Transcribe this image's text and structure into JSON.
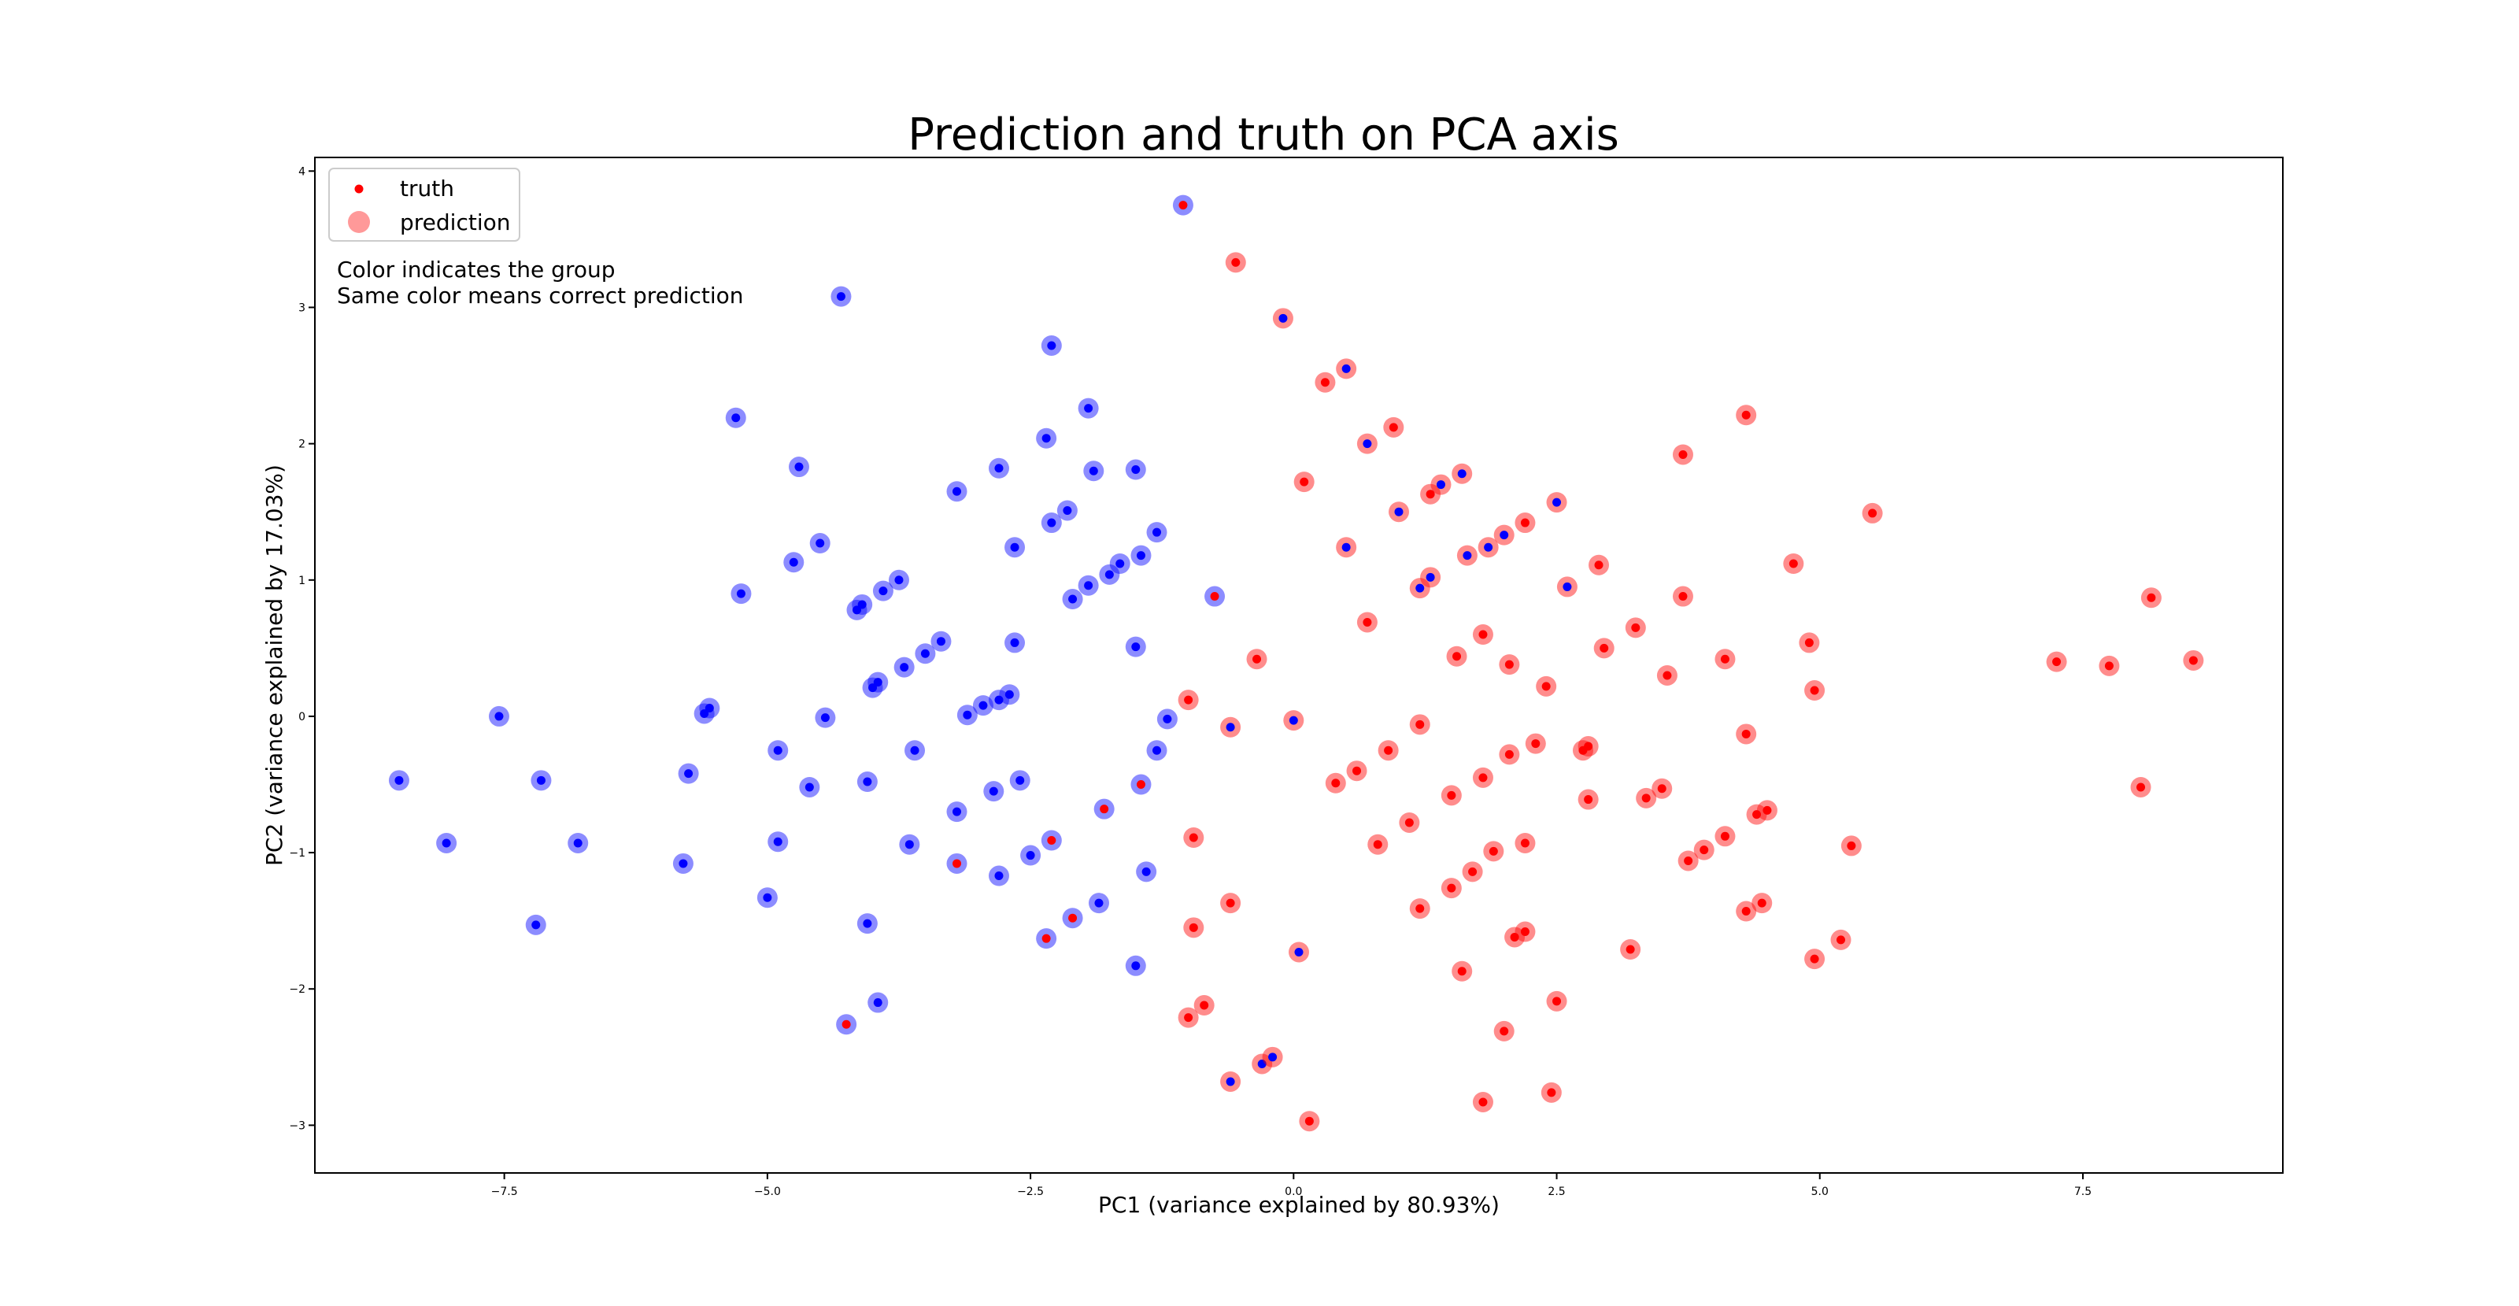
{
  "chart_data": {
    "type": "scatter",
    "title": "Prediction and truth on PCA axis",
    "xlabel": "PC1 (variance explained by 80.93%)",
    "ylabel": "PC2 (variance explained by 17.03%)",
    "xlim": [
      -9.3,
      9.4
    ],
    "ylim": [
      -3.35,
      4.1
    ],
    "xticks": [
      -7.5,
      -5.0,
      -2.5,
      0.0,
      2.5,
      5.0,
      7.5
    ],
    "xtick_labels": [
      "−7.5",
      "−5.0",
      "−2.5",
      "0.0",
      "2.5",
      "5.0",
      "7.5"
    ],
    "yticks": [
      -3,
      -2,
      -1,
      0,
      1,
      2,
      3,
      4
    ],
    "ytick_labels": [
      "−3",
      "−2",
      "−1",
      "0",
      "1",
      "2",
      "3",
      "4"
    ],
    "grid": false,
    "legend": {
      "position": "top-left",
      "entries": [
        {
          "label": "truth",
          "marker": "small dot"
        },
        {
          "label": "prediction",
          "marker": "large translucent circle"
        }
      ]
    },
    "annotation_lines": [
      "Color indicates the group",
      "Same color means correct prediction"
    ],
    "colors": {
      "group_blue": "#0000ff",
      "group_red": "#ff0000"
    },
    "points_columns": [
      "pc1",
      "pc2",
      "truth_group",
      "predicted_group"
    ],
    "points": [
      [
        -8.5,
        -0.47,
        "blue",
        "blue"
      ],
      [
        -8.05,
        -0.93,
        "blue",
        "blue"
      ],
      [
        -7.55,
        0.0,
        "blue",
        "blue"
      ],
      [
        -7.2,
        -1.53,
        "blue",
        "blue"
      ],
      [
        -7.15,
        -0.47,
        "blue",
        "blue"
      ],
      [
        -6.8,
        -0.93,
        "blue",
        "blue"
      ],
      [
        -5.8,
        -1.08,
        "blue",
        "blue"
      ],
      [
        -5.75,
        -0.42,
        "blue",
        "blue"
      ],
      [
        -5.6,
        0.02,
        "blue",
        "blue"
      ],
      [
        -5.55,
        0.06,
        "blue",
        "blue"
      ],
      [
        -5.3,
        2.19,
        "blue",
        "blue"
      ],
      [
        -5.25,
        0.9,
        "blue",
        "blue"
      ],
      [
        -5.0,
        -1.33,
        "blue",
        "blue"
      ],
      [
        -4.9,
        -0.25,
        "blue",
        "blue"
      ],
      [
        -4.9,
        -0.92,
        "blue",
        "blue"
      ],
      [
        -4.75,
        1.13,
        "blue",
        "blue"
      ],
      [
        -4.7,
        1.83,
        "blue",
        "blue"
      ],
      [
        -4.6,
        -0.52,
        "blue",
        "blue"
      ],
      [
        -4.5,
        1.27,
        "blue",
        "blue"
      ],
      [
        -4.45,
        -0.01,
        "blue",
        "blue"
      ],
      [
        -4.3,
        3.08,
        "blue",
        "blue"
      ],
      [
        -4.25,
        -2.26,
        "red",
        "blue"
      ],
      [
        -4.15,
        0.78,
        "blue",
        "blue"
      ],
      [
        -4.1,
        0.82,
        "blue",
        "blue"
      ],
      [
        -4.05,
        -1.52,
        "blue",
        "blue"
      ],
      [
        -4.05,
        -0.48,
        "blue",
        "blue"
      ],
      [
        -4.0,
        0.21,
        "blue",
        "blue"
      ],
      [
        -3.95,
        -2.1,
        "blue",
        "blue"
      ],
      [
        -3.95,
        0.25,
        "blue",
        "blue"
      ],
      [
        -3.9,
        0.92,
        "blue",
        "blue"
      ],
      [
        -3.75,
        1.0,
        "blue",
        "blue"
      ],
      [
        -3.7,
        0.36,
        "blue",
        "blue"
      ],
      [
        -3.65,
        -0.94,
        "blue",
        "blue"
      ],
      [
        -3.6,
        -0.25,
        "blue",
        "blue"
      ],
      [
        -3.5,
        0.46,
        "blue",
        "blue"
      ],
      [
        -3.35,
        0.55,
        "blue",
        "blue"
      ],
      [
        -3.2,
        -0.7,
        "blue",
        "blue"
      ],
      [
        -3.2,
        -1.08,
        "red",
        "blue"
      ],
      [
        -3.2,
        1.65,
        "blue",
        "blue"
      ],
      [
        -3.1,
        0.01,
        "blue",
        "blue"
      ],
      [
        -2.95,
        0.08,
        "blue",
        "blue"
      ],
      [
        -2.85,
        -0.55,
        "blue",
        "blue"
      ],
      [
        -2.8,
        1.82,
        "blue",
        "blue"
      ],
      [
        -2.8,
        -1.17,
        "blue",
        "blue"
      ],
      [
        -2.8,
        0.12,
        "blue",
        "blue"
      ],
      [
        -2.7,
        0.16,
        "blue",
        "blue"
      ],
      [
        -2.65,
        0.54,
        "blue",
        "blue"
      ],
      [
        -2.65,
        1.24,
        "blue",
        "blue"
      ],
      [
        -2.6,
        -0.47,
        "blue",
        "blue"
      ],
      [
        -2.5,
        -1.02,
        "blue",
        "blue"
      ],
      [
        -2.35,
        2.04,
        "blue",
        "blue"
      ],
      [
        -2.35,
        -1.63,
        "red",
        "blue"
      ],
      [
        -2.3,
        2.72,
        "blue",
        "blue"
      ],
      [
        -2.3,
        1.42,
        "blue",
        "blue"
      ],
      [
        -2.3,
        -0.91,
        "red",
        "blue"
      ],
      [
        -2.15,
        1.51,
        "blue",
        "blue"
      ],
      [
        -2.1,
        -1.48,
        "red",
        "blue"
      ],
      [
        -2.1,
        0.86,
        "blue",
        "blue"
      ],
      [
        -1.95,
        2.26,
        "blue",
        "blue"
      ],
      [
        -1.95,
        0.96,
        "blue",
        "blue"
      ],
      [
        -1.9,
        1.8,
        "blue",
        "blue"
      ],
      [
        -1.85,
        -1.37,
        "blue",
        "blue"
      ],
      [
        -1.8,
        -0.68,
        "red",
        "blue"
      ],
      [
        -1.75,
        1.04,
        "blue",
        "blue"
      ],
      [
        -1.65,
        1.12,
        "blue",
        "blue"
      ],
      [
        -1.5,
        -1.83,
        "blue",
        "blue"
      ],
      [
        -1.5,
        1.81,
        "blue",
        "blue"
      ],
      [
        -1.5,
        0.51,
        "blue",
        "blue"
      ],
      [
        -1.45,
        1.18,
        "blue",
        "blue"
      ],
      [
        -1.45,
        -0.5,
        "red",
        "blue"
      ],
      [
        -1.4,
        -1.14,
        "blue",
        "blue"
      ],
      [
        -1.3,
        -0.25,
        "blue",
        "blue"
      ],
      [
        -1.3,
        1.35,
        "blue",
        "blue"
      ],
      [
        -1.2,
        -0.02,
        "blue",
        "blue"
      ],
      [
        -1.05,
        3.75,
        "red",
        "blue"
      ],
      [
        -1.0,
        0.12,
        "red",
        "red"
      ],
      [
        -1.0,
        -2.21,
        "red",
        "red"
      ],
      [
        -0.95,
        -0.89,
        "red",
        "red"
      ],
      [
        -0.95,
        -1.55,
        "red",
        "red"
      ],
      [
        -0.85,
        -2.12,
        "red",
        "red"
      ],
      [
        -0.75,
        0.88,
        "red",
        "blue"
      ],
      [
        -0.6,
        -0.08,
        "blue",
        "red"
      ],
      [
        -0.6,
        -1.37,
        "red",
        "red"
      ],
      [
        -0.6,
        -2.68,
        "blue",
        "red"
      ],
      [
        -0.55,
        3.33,
        "red",
        "red"
      ],
      [
        -0.35,
        0.42,
        "red",
        "red"
      ],
      [
        -0.3,
        -2.55,
        "blue",
        "red"
      ],
      [
        -0.2,
        -2.5,
        "blue",
        "red"
      ],
      [
        -0.1,
        2.92,
        "blue",
        "red"
      ],
      [
        0.0,
        -0.03,
        "blue",
        "red"
      ],
      [
        0.05,
        -1.73,
        "blue",
        "red"
      ],
      [
        0.1,
        1.72,
        "red",
        "red"
      ],
      [
        0.15,
        -2.97,
        "red",
        "red"
      ],
      [
        0.3,
        2.45,
        "red",
        "red"
      ],
      [
        0.4,
        -0.49,
        "red",
        "red"
      ],
      [
        0.5,
        2.55,
        "blue",
        "red"
      ],
      [
        0.5,
        1.24,
        "blue",
        "red"
      ],
      [
        0.6,
        -0.4,
        "red",
        "red"
      ],
      [
        0.7,
        0.69,
        "red",
        "red"
      ],
      [
        0.7,
        2.0,
        "blue",
        "red"
      ],
      [
        0.8,
        -0.94,
        "red",
        "red"
      ],
      [
        0.9,
        -0.25,
        "red",
        "red"
      ],
      [
        0.95,
        2.12,
        "red",
        "red"
      ],
      [
        1.0,
        1.5,
        "blue",
        "red"
      ],
      [
        1.1,
        -0.78,
        "red",
        "red"
      ],
      [
        1.2,
        -1.41,
        "red",
        "red"
      ],
      [
        1.2,
        -0.06,
        "red",
        "red"
      ],
      [
        1.2,
        0.94,
        "blue",
        "red"
      ],
      [
        1.3,
        1.63,
        "red",
        "red"
      ],
      [
        1.3,
        1.02,
        "blue",
        "red"
      ],
      [
        1.4,
        1.7,
        "blue",
        "red"
      ],
      [
        1.5,
        -1.26,
        "red",
        "red"
      ],
      [
        1.5,
        -0.58,
        "red",
        "red"
      ],
      [
        1.55,
        0.44,
        "red",
        "red"
      ],
      [
        1.6,
        1.78,
        "blue",
        "red"
      ],
      [
        1.6,
        -1.87,
        "red",
        "red"
      ],
      [
        1.65,
        1.18,
        "blue",
        "red"
      ],
      [
        1.7,
        -1.14,
        "red",
        "red"
      ],
      [
        1.8,
        0.6,
        "red",
        "red"
      ],
      [
        1.8,
        -0.45,
        "red",
        "red"
      ],
      [
        1.8,
        -2.83,
        "red",
        "red"
      ],
      [
        1.85,
        1.24,
        "blue",
        "red"
      ],
      [
        1.9,
        -0.99,
        "red",
        "red"
      ],
      [
        2.0,
        1.33,
        "blue",
        "red"
      ],
      [
        2.0,
        -2.31,
        "red",
        "red"
      ],
      [
        2.05,
        0.38,
        "red",
        "red"
      ],
      [
        2.05,
        -0.28,
        "red",
        "red"
      ],
      [
        2.1,
        -1.62,
        "red",
        "red"
      ],
      [
        2.2,
        -0.93,
        "red",
        "red"
      ],
      [
        2.2,
        -1.58,
        "red",
        "red"
      ],
      [
        2.2,
        1.42,
        "red",
        "red"
      ],
      [
        2.3,
        -0.2,
        "red",
        "red"
      ],
      [
        2.4,
        0.22,
        "red",
        "red"
      ],
      [
        2.45,
        -2.76,
        "red",
        "red"
      ],
      [
        2.5,
        1.57,
        "blue",
        "red"
      ],
      [
        2.5,
        -2.09,
        "red",
        "red"
      ],
      [
        2.6,
        0.95,
        "blue",
        "red"
      ],
      [
        2.75,
        -0.25,
        "red",
        "red"
      ],
      [
        2.8,
        -0.61,
        "red",
        "red"
      ],
      [
        2.8,
        -0.22,
        "red",
        "red"
      ],
      [
        2.9,
        1.11,
        "red",
        "red"
      ],
      [
        2.95,
        0.5,
        "red",
        "red"
      ],
      [
        3.2,
        -1.71,
        "red",
        "red"
      ],
      [
        3.25,
        0.65,
        "red",
        "red"
      ],
      [
        3.35,
        -0.6,
        "red",
        "red"
      ],
      [
        3.5,
        -0.53,
        "red",
        "red"
      ],
      [
        3.55,
        0.3,
        "red",
        "red"
      ],
      [
        3.7,
        1.92,
        "red",
        "red"
      ],
      [
        3.7,
        0.88,
        "red",
        "red"
      ],
      [
        3.75,
        -1.06,
        "red",
        "red"
      ],
      [
        3.9,
        -0.98,
        "red",
        "red"
      ],
      [
        4.1,
        -0.88,
        "red",
        "red"
      ],
      [
        4.1,
        0.42,
        "red",
        "red"
      ],
      [
        4.3,
        2.21,
        "red",
        "red"
      ],
      [
        4.3,
        -0.13,
        "red",
        "red"
      ],
      [
        4.3,
        -1.43,
        "red",
        "red"
      ],
      [
        4.4,
        -0.72,
        "red",
        "red"
      ],
      [
        4.45,
        -1.37,
        "red",
        "red"
      ],
      [
        4.5,
        -0.69,
        "red",
        "red"
      ],
      [
        4.75,
        1.12,
        "red",
        "red"
      ],
      [
        4.9,
        0.54,
        "red",
        "red"
      ],
      [
        4.95,
        -1.78,
        "red",
        "red"
      ],
      [
        4.95,
        0.19,
        "red",
        "red"
      ],
      [
        5.2,
        -1.64,
        "red",
        "red"
      ],
      [
        5.3,
        -0.95,
        "red",
        "red"
      ],
      [
        5.5,
        1.49,
        "red",
        "red"
      ],
      [
        7.25,
        0.4,
        "red",
        "red"
      ],
      [
        7.75,
        0.37,
        "red",
        "red"
      ],
      [
        8.05,
        -0.52,
        "red",
        "red"
      ],
      [
        8.15,
        0.87,
        "red",
        "red"
      ],
      [
        8.55,
        0.41,
        "red",
        "red"
      ]
    ]
  }
}
